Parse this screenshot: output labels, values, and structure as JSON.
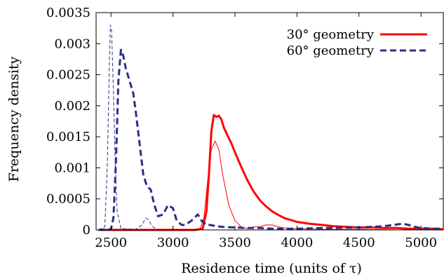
{
  "chart_data": {
    "type": "line",
    "xlabel": "Residence time (units of τ)",
    "ylabel": "Frequency density",
    "xlim": [
      2380,
      5180
    ],
    "ylim": [
      0,
      0.0035
    ],
    "x_ticks": [
      2500,
      3000,
      3500,
      4000,
      4500,
      5000
    ],
    "x_tick_labels": [
      "2500",
      "3000",
      "3500",
      "4000",
      "4500",
      "5000"
    ],
    "y_ticks": [
      0,
      0.0005,
      0.001,
      0.0015,
      0.002,
      0.0025,
      0.003,
      0.0035
    ],
    "y_tick_labels": [
      "0",
      "0.0005",
      "0.001",
      "0.0015",
      "0.002",
      "0.0025",
      "0.003",
      "0.0035"
    ],
    "grid": false,
    "legend_position": "top-right",
    "legend": [
      {
        "label": "30° geometry",
        "color": "#ff0000",
        "style": "solid"
      },
      {
        "label": "60° geometry",
        "color": "#2a2f8a",
        "style": "dashed"
      }
    ],
    "series": [
      {
        "name": "30° geometry",
        "color": "#ff0000",
        "style": "solid",
        "weight": "thick",
        "x": [
          2400,
          3000,
          3180,
          3240,
          3270,
          3290,
          3310,
          3330,
          3350,
          3370,
          3390,
          3410,
          3440,
          3470,
          3500,
          3550,
          3600,
          3650,
          3700,
          3750,
          3800,
          3850,
          3900,
          4000,
          4100,
          4200,
          4300,
          4400,
          4500,
          4600,
          4700,
          4800,
          4900,
          5000,
          5100,
          5180
        ],
        "y": [
          0,
          0,
          0,
          2e-05,
          0.0003,
          0.0009,
          0.0016,
          0.00185,
          0.00182,
          0.00184,
          0.00178,
          0.00165,
          0.00152,
          0.0014,
          0.00125,
          0.00102,
          0.0008,
          0.00062,
          0.00048,
          0.00038,
          0.0003,
          0.00024,
          0.00019,
          0.00013,
          0.0001,
          8e-05,
          6e-05,
          5e-05,
          4e-05,
          4e-05,
          3e-05,
          3e-05,
          2e-05,
          2e-05,
          2e-05,
          1e-05
        ]
      },
      {
        "name": "",
        "color": "#ff0000",
        "style": "solid",
        "weight": "thin",
        "x": [
          2400,
          3150,
          3220,
          3250,
          3280,
          3310,
          3340,
          3370,
          3400,
          3450,
          3500,
          3550,
          3600,
          3650,
          3700,
          3750,
          3800,
          3850,
          3900,
          4000,
          4200,
          4500,
          4800,
          5180
        ],
        "y": [
          0,
          0,
          2e-05,
          0.0002,
          0.0008,
          0.0013,
          0.00143,
          0.0013,
          0.0009,
          0.0004,
          0.00015,
          5e-05,
          2e-05,
          5e-05,
          5e-05,
          8e-05,
          8e-05,
          5e-05,
          3e-05,
          2e-05,
          1e-05,
          1e-05,
          0,
          0
        ]
      },
      {
        "name": "60° geometry",
        "color": "#2a2f8a",
        "style": "dashed",
        "weight": "thick",
        "x": [
          2400,
          2500,
          2520,
          2540,
          2560,
          2580,
          2600,
          2620,
          2650,
          2680,
          2700,
          2730,
          2760,
          2790,
          2820,
          2850,
          2880,
          2920,
          2960,
          3000,
          3030,
          3070,
          3100,
          3150,
          3200,
          3230,
          3270,
          3300,
          3350,
          3400,
          3500,
          3600,
          3700,
          3800,
          4000,
          4200,
          4500,
          4700,
          4850,
          4900,
          4950,
          5000,
          5100,
          5180
        ],
        "y": [
          0,
          1e-05,
          0.0002,
          0.0011,
          0.0024,
          0.0029,
          0.0028,
          0.0026,
          0.0024,
          0.0022,
          0.0019,
          0.0014,
          0.0009,
          0.0007,
          0.00065,
          0.0004,
          0.00022,
          0.00025,
          0.0004,
          0.00035,
          0.00015,
          8e-05,
          8e-05,
          0.00015,
          0.00025,
          0.00015,
          8e-05,
          8e-05,
          6e-05,
          5e-05,
          4e-05,
          3e-05,
          3e-05,
          2e-05,
          2e-05,
          3e-05,
          4e-05,
          6e-05,
          0.0001,
          8e-05,
          5e-05,
          3e-05,
          2e-05,
          2e-05
        ]
      },
      {
        "name": "",
        "color": "#2a2f8a",
        "style": "dashed",
        "weight": "thin",
        "x": [
          2400,
          2450,
          2470,
          2485,
          2495,
          2505,
          2520,
          2535,
          2550,
          2580,
          2700,
          2750,
          2780,
          2800,
          2830,
          2870,
          3000,
          5180
        ],
        "y": [
          0,
          5e-05,
          0.001,
          0.0025,
          0.0033,
          0.0032,
          0.0022,
          0.001,
          0.0003,
          2e-05,
          1e-05,
          8e-05,
          0.00019,
          0.00017,
          6e-05,
          1e-05,
          0,
          0
        ]
      }
    ]
  }
}
